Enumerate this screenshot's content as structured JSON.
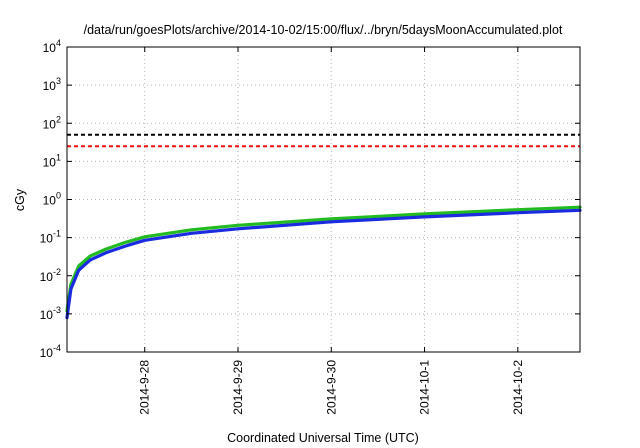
{
  "chart_data": {
    "type": "line",
    "title": "/data/run/goesPlots/archive/2014-10-02/15:00/flux/../bryn/5daysMoonAccumulated.plot",
    "xlabel": "Coordinated Universal Time (UTC)",
    "ylabel": "cGy",
    "yscale": "log",
    "ylim": [
      0.0001,
      10000
    ],
    "xlim": [
      "2014-09-27 04:00",
      "2014-10-02 16:00"
    ],
    "grid": true,
    "y_ticks": [
      {
        "value": 0.0001,
        "base": "10",
        "exp": "-4"
      },
      {
        "value": 0.001,
        "base": "10",
        "exp": "-3"
      },
      {
        "value": 0.01,
        "base": "10",
        "exp": "-2"
      },
      {
        "value": 0.1,
        "base": "10",
        "exp": "-1"
      },
      {
        "value": 1,
        "base": "10",
        "exp": "0"
      },
      {
        "value": 10,
        "base": "10",
        "exp": "1"
      },
      {
        "value": 100,
        "base": "10",
        "exp": "2"
      },
      {
        "value": 1000,
        "base": "10",
        "exp": "3"
      },
      {
        "value": 10000,
        "base": "10",
        "exp": "4"
      }
    ],
    "x_ticks": [
      {
        "value": "2014-09-28 00:00",
        "label": "2014-9-28"
      },
      {
        "value": "2014-09-29 00:00",
        "label": "2014-9-29"
      },
      {
        "value": "2014-09-30 00:00",
        "label": "2014-9-30"
      },
      {
        "value": "2014-10-01 00:00",
        "label": "2014-10-1"
      },
      {
        "value": "2014-10-02 00:00",
        "label": "2014-10-2"
      }
    ],
    "series": [
      {
        "color": "#22bb22",
        "style": "solid",
        "points": [
          [
            "2014-09-27 04:00",
            0.0012
          ],
          [
            "2014-09-27 05:00",
            0.006
          ],
          [
            "2014-09-27 07:00",
            0.018
          ],
          [
            "2014-09-27 10:00",
            0.033
          ],
          [
            "2014-09-27 14:00",
            0.05
          ],
          [
            "2014-09-27 19:00",
            0.075
          ],
          [
            "2014-09-28 00:00",
            0.105
          ],
          [
            "2014-09-28 12:00",
            0.16
          ],
          [
            "2014-09-29 00:00",
            0.21
          ],
          [
            "2014-09-30 00:00",
            0.31
          ],
          [
            "2014-10-01 00:00",
            0.42
          ],
          [
            "2014-10-02 00:00",
            0.54
          ],
          [
            "2014-10-02 16:00",
            0.63
          ]
        ]
      },
      {
        "color": "#1a2be0",
        "style": "solid",
        "points": [
          [
            "2014-09-27 04:00",
            0.0008
          ],
          [
            "2014-09-27 05:00",
            0.0045
          ],
          [
            "2014-09-27 07:00",
            0.014
          ],
          [
            "2014-09-27 10:00",
            0.026
          ],
          [
            "2014-09-27 14:00",
            0.04
          ],
          [
            "2014-09-27 19:00",
            0.06
          ],
          [
            "2014-09-28 00:00",
            0.085
          ],
          [
            "2014-09-28 12:00",
            0.13
          ],
          [
            "2014-09-29 00:00",
            0.17
          ],
          [
            "2014-09-30 00:00",
            0.26
          ],
          [
            "2014-10-01 00:00",
            0.35
          ],
          [
            "2014-10-02 00:00",
            0.45
          ],
          [
            "2014-10-02 16:00",
            0.52
          ]
        ]
      },
      {
        "color": "#000000",
        "style": "dashed",
        "points": [
          [
            "2014-09-27 04:00",
            50
          ],
          [
            "2014-10-02 16:00",
            50
          ]
        ]
      },
      {
        "color": "#ee1111",
        "style": "dashed",
        "points": [
          [
            "2014-09-27 04:00",
            25
          ],
          [
            "2014-10-02 16:00",
            25
          ]
        ]
      }
    ]
  }
}
